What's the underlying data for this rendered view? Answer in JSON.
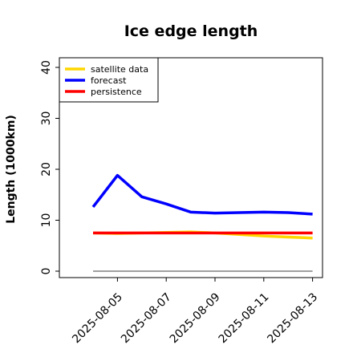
{
  "chart_data": {
    "type": "line",
    "title": "Ice edge length",
    "xlabel": "",
    "ylabel": "Length (1000km)",
    "ylim": [
      0,
      40
    ],
    "yticks": [
      "0",
      "10",
      "20",
      "30",
      "40"
    ],
    "x": [
      "2025-08-04",
      "2025-08-05",
      "2025-08-06",
      "2025-08-07",
      "2025-08-08",
      "2025-08-09",
      "2025-08-10",
      "2025-08-11",
      "2025-08-12",
      "2025-08-13"
    ],
    "xticks": [
      "2025-08-05",
      "2025-08-07",
      "2025-08-09",
      "2025-08-11",
      "2025-08-13"
    ],
    "highlighted_xtick": "2025-08-05",
    "highlight_color": "#228b22",
    "grid": false,
    "legend_position": "top-left",
    "series": [
      {
        "name": "satellite data",
        "color": "#ffd700",
        "values": [
          7.5,
          7.4,
          7.5,
          7.6,
          7.7,
          7.5,
          7.2,
          6.9,
          6.7,
          6.5
        ]
      },
      {
        "name": "forecast",
        "color": "#0000ff",
        "values": [
          12.6,
          18.8,
          14.6,
          13.2,
          11.6,
          11.4,
          11.5,
          11.6,
          11.5,
          11.2
        ]
      },
      {
        "name": "persistence",
        "color": "#ff0000",
        "values": [
          7.5,
          7.5,
          7.5,
          7.5,
          7.5,
          7.5,
          7.5,
          7.5,
          7.5,
          7.5
        ]
      }
    ],
    "reference_line": {
      "y": 0,
      "color": "#808080"
    }
  }
}
